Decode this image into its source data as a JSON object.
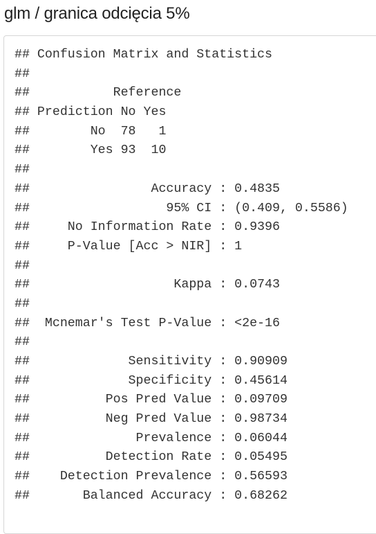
{
  "heading": "glm / granica odcięcia 5%",
  "output_lines": [
    "## Confusion Matrix and Statistics",
    "##",
    "##           Reference",
    "## Prediction No Yes",
    "##        No  78   1",
    "##        Yes 93  10",
    "##",
    "##                Accuracy : 0.4835",
    "##                  95% CI : (0.409, 0.5586)",
    "##     No Information Rate : 0.9396",
    "##     P-Value [Acc > NIR] : 1",
    "##",
    "##                   Kappa : 0.0743",
    "##",
    "##  Mcnemar's Test P-Value : <2e-16",
    "##",
    "##             Sensitivity : 0.90909",
    "##             Specificity : 0.45614",
    "##          Pos Pred Value : 0.09709",
    "##          Neg Pred Value : 0.98734",
    "##              Prevalence : 0.06044",
    "##          Detection Rate : 0.05495",
    "##    Detection Prevalence : 0.56593",
    "##       Balanced Accuracy : 0.68262"
  ]
}
